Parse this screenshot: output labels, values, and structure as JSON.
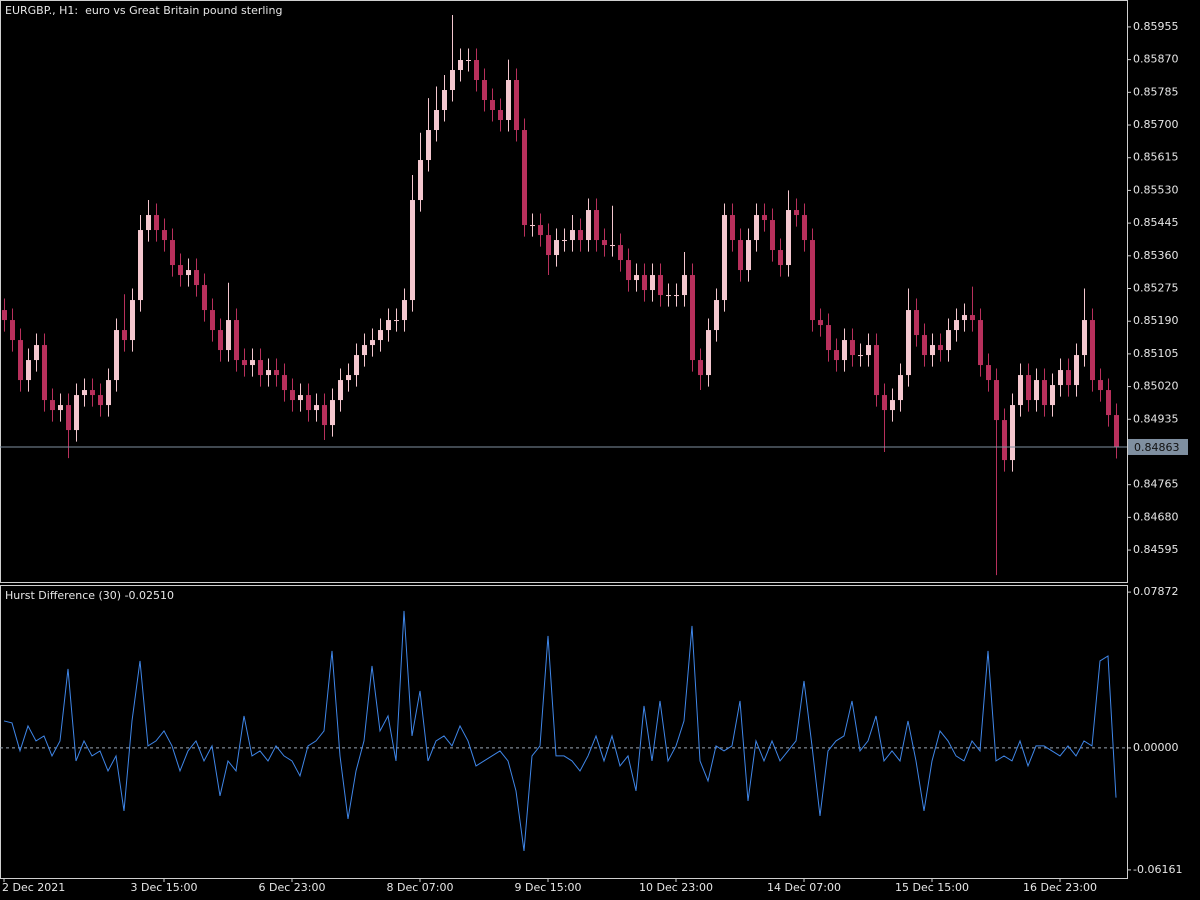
{
  "chart_data": [
    {
      "type": "candlestick",
      "title": "EURGBP., H1:  euro vs Great Britain pound sterling",
      "open": [
        0.85219,
        0.85193,
        0.85141,
        0.85037,
        0.85089,
        0.85128,
        0.84985,
        0.84959,
        0.84972,
        0.84907,
        0.84998,
        0.85011,
        0.84998,
        0.84972,
        0.85037,
        0.85167,
        0.85141,
        0.85245,
        0.85427,
        0.85466,
        0.85427,
        0.85401,
        0.85336,
        0.8531,
        0.85323,
        0.85284,
        0.85219,
        0.85167,
        0.85115,
        0.85193,
        0.85089,
        0.85076,
        0.85089,
        0.8505,
        0.85063,
        0.8505,
        0.85011,
        0.84985,
        0.84998,
        0.84959,
        0.84972,
        0.8492,
        0.84985,
        0.85037,
        0.8505,
        0.85102,
        0.85128,
        0.85141,
        0.85167,
        0.85193,
        0.85193,
        0.85245,
        0.85505,
        0.85609,
        0.85687,
        0.85739,
        0.85791,
        0.85843,
        0.85869,
        0.85869,
        0.85817,
        0.85765,
        0.85739,
        0.85713,
        0.85817,
        0.85687,
        0.8544,
        0.8544,
        0.85414,
        0.85362,
        0.85401,
        0.85401,
        0.85427,
        0.85401,
        0.85479,
        0.85401,
        0.85388,
        0.85388,
        0.85349,
        0.85297,
        0.8531,
        0.85271,
        0.8531,
        0.85258,
        0.85258,
        0.85258,
        0.8531,
        0.85089,
        0.8505,
        0.85167,
        0.85245,
        0.85466,
        0.85401,
        0.85323,
        0.85401,
        0.85466,
        0.85453,
        0.85375,
        0.85336,
        0.85479,
        0.85466,
        0.85401,
        0.85193,
        0.8518,
        0.85115,
        0.85089,
        0.85141,
        0.85102,
        0.85102,
        0.85128,
        0.84998,
        0.84959,
        0.84985,
        0.8505,
        0.85219,
        0.85154,
        0.85102,
        0.85128,
        0.85115,
        0.85167,
        0.85193,
        0.85206,
        0.85193,
        0.85076,
        0.85037,
        0.84933,
        0.84829,
        0.84972,
        0.8505,
        0.84985,
        0.85037,
        0.84972,
        0.85024,
        0.85063,
        0.85024,
        0.85102,
        0.85193,
        0.85037,
        0.85011,
        0.84946
      ],
      "high": [
        0.85249,
        0.85223,
        0.85171,
        0.85119,
        0.85158,
        0.85158,
        0.85015,
        0.85002,
        0.85002,
        0.85028,
        0.85041,
        0.85041,
        0.85028,
        0.85067,
        0.85197,
        0.8526,
        0.85275,
        0.85466,
        0.85505,
        0.85496,
        0.85457,
        0.85431,
        0.85366,
        0.85353,
        0.85353,
        0.85314,
        0.85249,
        0.85197,
        0.8529,
        0.85223,
        0.85119,
        0.85119,
        0.85119,
        0.85093,
        0.85093,
        0.8508,
        0.85041,
        0.85028,
        0.85028,
        0.85002,
        0.85002,
        0.85015,
        0.85067,
        0.8508,
        0.85132,
        0.85158,
        0.85171,
        0.85197,
        0.85223,
        0.85223,
        0.85275,
        0.8557,
        0.8568,
        0.8577,
        0.858,
        0.8583,
        0.85986,
        0.85899,
        0.85899,
        0.85899,
        0.85847,
        0.85795,
        0.85769,
        0.8587,
        0.85847,
        0.85717,
        0.8547,
        0.8547,
        0.85444,
        0.85431,
        0.85431,
        0.85466,
        0.85457,
        0.85509,
        0.85509,
        0.85431,
        0.8549,
        0.85418,
        0.85379,
        0.8534,
        0.8534,
        0.8534,
        0.8534,
        0.85288,
        0.85288,
        0.8537,
        0.8534,
        0.85119,
        0.85197,
        0.85275,
        0.85496,
        0.85496,
        0.85431,
        0.85431,
        0.85496,
        0.85496,
        0.85483,
        0.85405,
        0.8553,
        0.85509,
        0.85496,
        0.85431,
        0.85223,
        0.8521,
        0.85145,
        0.85171,
        0.85171,
        0.85132,
        0.85158,
        0.85158,
        0.85028,
        0.85015,
        0.8508,
        0.85275,
        0.85249,
        0.85184,
        0.85158,
        0.85158,
        0.85197,
        0.85223,
        0.85236,
        0.8528,
        0.85223,
        0.85106,
        0.85067,
        0.84963,
        0.85002,
        0.8508,
        0.8508,
        0.85067,
        0.85067,
        0.85054,
        0.85093,
        0.85093,
        0.85132,
        0.85275,
        0.85223,
        0.85067,
        0.85041,
        0.84976
      ],
      "low": [
        0.85163,
        0.85111,
        0.85007,
        0.85007,
        0.85059,
        0.84955,
        0.84929,
        0.84929,
        0.84834,
        0.84877,
        0.84968,
        0.84968,
        0.84942,
        0.84942,
        0.85007,
        0.85111,
        0.85111,
        0.85215,
        0.85397,
        0.85397,
        0.85371,
        0.85306,
        0.8528,
        0.8528,
        0.85254,
        0.85189,
        0.85137,
        0.85085,
        0.85085,
        0.85059,
        0.85046,
        0.85046,
        0.8502,
        0.8502,
        0.8502,
        0.84981,
        0.84955,
        0.84955,
        0.84929,
        0.84929,
        0.84881,
        0.8489,
        0.84955,
        0.85007,
        0.8502,
        0.85072,
        0.85098,
        0.85111,
        0.85137,
        0.85163,
        0.85163,
        0.85215,
        0.85475,
        0.85579,
        0.85657,
        0.85709,
        0.85761,
        0.85813,
        0.85839,
        0.85787,
        0.85735,
        0.85709,
        0.85683,
        0.85683,
        0.85657,
        0.8541,
        0.8541,
        0.85384,
        0.8531,
        0.85332,
        0.85371,
        0.85371,
        0.85371,
        0.85371,
        0.85371,
        0.85358,
        0.85358,
        0.85319,
        0.85267,
        0.85267,
        0.85241,
        0.85241,
        0.85228,
        0.85228,
        0.85228,
        0.85228,
        0.85059,
        0.85011,
        0.8502,
        0.85137,
        0.85215,
        0.85371,
        0.85293,
        0.85293,
        0.85371,
        0.85423,
        0.85345,
        0.85306,
        0.85306,
        0.85436,
        0.85371,
        0.85163,
        0.8515,
        0.85085,
        0.85059,
        0.85059,
        0.85072,
        0.85072,
        0.85072,
        0.84968,
        0.8485,
        0.84929,
        0.84955,
        0.8502,
        0.85124,
        0.85072,
        0.85072,
        0.85085,
        0.85085,
        0.85137,
        0.85163,
        0.85163,
        0.85046,
        0.85007,
        0.8453,
        0.84799,
        0.84799,
        0.84942,
        0.84955,
        0.84955,
        0.84942,
        0.84942,
        0.84994,
        0.84994,
        0.84994,
        0.85072,
        0.85007,
        0.84981,
        0.84916,
        0.84833
      ],
      "close": [
        0.85193,
        0.85141,
        0.85037,
        0.85089,
        0.85128,
        0.84985,
        0.84959,
        0.84972,
        0.84907,
        0.84998,
        0.85011,
        0.84998,
        0.84972,
        0.85037,
        0.85167,
        0.85141,
        0.85245,
        0.85427,
        0.85466,
        0.85427,
        0.85401,
        0.85336,
        0.8531,
        0.85323,
        0.85284,
        0.85219,
        0.85167,
        0.85115,
        0.85193,
        0.85089,
        0.85076,
        0.85089,
        0.8505,
        0.85063,
        0.8505,
        0.85011,
        0.84985,
        0.84998,
        0.84959,
        0.84972,
        0.8492,
        0.84985,
        0.85037,
        0.8505,
        0.85102,
        0.85128,
        0.85141,
        0.85167,
        0.85193,
        0.85193,
        0.85245,
        0.85505,
        0.85609,
        0.85687,
        0.85739,
        0.85791,
        0.85843,
        0.85869,
        0.85869,
        0.85817,
        0.85765,
        0.85739,
        0.85713,
        0.85817,
        0.85687,
        0.8544,
        0.8544,
        0.85414,
        0.85362,
        0.85401,
        0.85401,
        0.85427,
        0.85401,
        0.85479,
        0.85401,
        0.85388,
        0.85388,
        0.85349,
        0.85297,
        0.8531,
        0.85271,
        0.8531,
        0.85258,
        0.85258,
        0.85258,
        0.8531,
        0.85089,
        0.8505,
        0.85167,
        0.85245,
        0.85466,
        0.85401,
        0.85323,
        0.85401,
        0.85466,
        0.85453,
        0.85375,
        0.85336,
        0.85479,
        0.85466,
        0.85401,
        0.85193,
        0.8518,
        0.85115,
        0.85089,
        0.85141,
        0.85102,
        0.85102,
        0.85128,
        0.84998,
        0.84959,
        0.84985,
        0.8505,
        0.85219,
        0.85154,
        0.85102,
        0.85128,
        0.85115,
        0.85167,
        0.85193,
        0.85206,
        0.85193,
        0.85076,
        0.85037,
        0.84933,
        0.84829,
        0.84972,
        0.8505,
        0.84985,
        0.85037,
        0.84972,
        0.85024,
        0.85063,
        0.85024,
        0.85102,
        0.85193,
        0.85037,
        0.85011,
        0.84946,
        0.84863
      ],
      "up_color": "#f4c7cf",
      "down_color": "#b8305c",
      "ylim": [
        0.84512,
        0.86025
      ],
      "yticks": [
        0.85955,
        {
          "value": 0.8587,
          "label": "0.85870"
        },
        0.85785,
        {
          "value": 0.857,
          "label": "0.85700"
        },
        0.85615,
        {
          "value": 0.8553,
          "label": "0.85530"
        },
        0.85445,
        {
          "value": 0.8536,
          "label": "0.85360"
        },
        0.85275,
        {
          "value": 0.8519,
          "label": "0.85190"
        },
        0.85105,
        {
          "value": 0.8502,
          "label": "0.85020"
        },
        0.84935,
        0.84765,
        {
          "value": 0.8468,
          "label": "0.84680"
        },
        0.84595
      ],
      "current_price": 0.84863,
      "current_price_color": "#7f8fa0"
    },
    {
      "type": "line",
      "title": "Hurst Difference (30) -0.02510",
      "categories": [
        "2 Dec 2021",
        null,
        null,
        null,
        null,
        null,
        null,
        null,
        null,
        null,
        null,
        null,
        null,
        null,
        null,
        null,
        null,
        null,
        null,
        null,
        "3 Dec 15:00",
        null,
        null,
        null,
        null,
        null,
        null,
        null,
        null,
        null,
        null,
        null,
        null,
        null,
        null,
        null,
        "6 Dec 23:00",
        null,
        null,
        null,
        null,
        null,
        null,
        null,
        null,
        null,
        null,
        null,
        null,
        null,
        null,
        null,
        "8 Dec 07:00",
        null,
        null,
        null,
        null,
        null,
        null,
        null,
        null,
        null,
        null,
        null,
        null,
        null,
        null,
        null,
        "9 Dec 15:00",
        null,
        null,
        null,
        null,
        null,
        null,
        null,
        null,
        null,
        null,
        null,
        null,
        null,
        null,
        null,
        "10 Dec 23:00",
        null,
        null,
        null,
        null,
        null,
        null,
        null,
        null,
        null,
        null,
        null,
        null,
        null,
        null,
        null,
        "14 Dec 07:00",
        null,
        null,
        null,
        null,
        null,
        null,
        null,
        null,
        null,
        null,
        null,
        null,
        null,
        null,
        null,
        "15 Dec 15:00",
        null,
        null,
        null,
        null,
        null,
        null,
        null,
        null,
        null,
        null,
        null,
        null,
        null,
        null,
        null,
        "16 Dec 23:00",
        null,
        null,
        null,
        null,
        null,
        null,
        null
      ],
      "values": [
        0.01364,
        0.01263,
        -0.00152,
        0.01111,
        0.00354,
        0.00606,
        -0.00404,
        0.00354,
        0.0399,
        -0.00657,
        0.00354,
        -0.00404,
        -0.00152,
        -0.01162,
        -0.00404,
        -0.03182,
        0.01364,
        0.04394,
        0.00101,
        0.00354,
        0.00859,
        0.00101,
        -0.01162,
        -0.00152,
        0.00354,
        -0.00657,
        0.00101,
        -0.02424,
        -0.00657,
        -0.01162,
        0.01616,
        -0.00404,
        -0.00152,
        -0.00657,
        0.00101,
        -0.00404,
        -0.00657,
        -0.01414,
        0.00101,
        0.00354,
        0.00859,
        0.04899,
        -0.00404,
        -0.03586,
        -0.01162,
        0.00354,
        0.04141,
        0.00859,
        0.01616,
        -0.00657,
        0.06919,
        0.00606,
        0.02879,
        -0.00657,
        0.00354,
        0.00606,
        0.00101,
        0.01111,
        0.00354,
        -0.00909,
        -0.00657,
        -0.00404,
        -0.00152,
        -0.00657,
        -0.02172,
        -0.05202,
        -0.00404,
        0.00101,
        0.05656,
        -0.00404,
        -0.00404,
        -0.00657,
        -0.01162,
        -0.00404,
        0.00606,
        -0.00657,
        0.00606,
        -0.00909,
        -0.00404,
        -0.02172,
        0.02121,
        -0.00657,
        0.02374,
        -0.00657,
        0.00101,
        0.01364,
        0.06161,
        -0.00657,
        -0.01667,
        0.00101,
        -0.00152,
        0.00101,
        0.02374,
        -0.02677,
        0.00354,
        -0.00657,
        0.00354,
        -0.00657,
        -0.00152,
        0.00354,
        0.03384,
        0.00101,
        -0.03434,
        -0.00152,
        0.00354,
        0.00606,
        0.02374,
        -0.00152,
        0.00354,
        0.01616,
        -0.00657,
        -0.00152,
        -0.00657,
        0.01364,
        -0.00657,
        -0.03182,
        -0.00657,
        0.00859,
        0.00354,
        -0.00404,
        -0.00657,
        0.00354,
        -0.00152,
        0.04899,
        -0.00657,
        -0.00404,
        -0.00657,
        0.00354,
        -0.00909,
        0.00101,
        0.00101,
        -0.00152,
        -0.00404,
        0.00101,
        -0.00404,
        0.00354,
        0.00101,
        0.04394,
        0.04646,
        -0.0251
      ],
      "color": "#3f86e8",
      "ylim": [
        -0.0657,
        0.0823
      ],
      "yticks": [
        0.07872,
        {
          "value": 0,
          "label": "0.00000"
        },
        -0.06161
      ],
      "levels": [
        0
      ]
    }
  ]
}
